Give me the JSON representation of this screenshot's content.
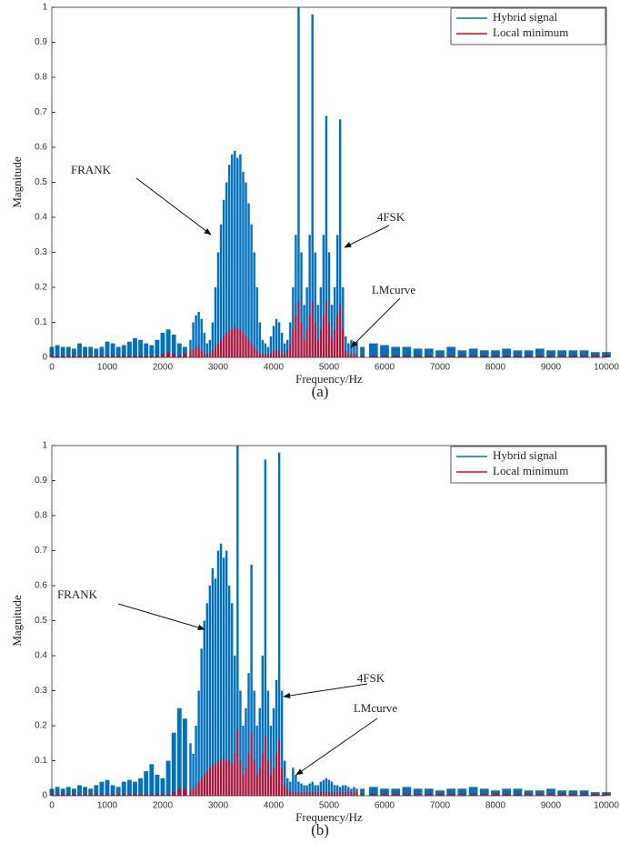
{
  "chart_data": [
    {
      "type": "stem",
      "caption": "(a)",
      "x_label": "Frequency/Hz",
      "y_label": "Magnitude",
      "legend": "upper right",
      "annotations": [
        "FRANK",
        "4FSK",
        "LMcurve"
      ],
      "xlim": [
        0,
        10000
      ],
      "ylim": [
        0,
        1
      ],
      "xticks": [
        0,
        1000,
        2000,
        3000,
        4000,
        5000,
        6000,
        7000,
        8000,
        9000,
        10000
      ],
      "yticks": [
        0,
        0.1,
        0.2,
        0.3,
        0.4,
        0.5,
        0.6,
        0.7,
        0.8,
        0.9,
        1
      ],
      "x": [
        0,
        100,
        200,
        300,
        400,
        500,
        600,
        700,
        800,
        900,
        1000,
        1100,
        1200,
        1300,
        1400,
        1500,
        1600,
        1700,
        1800,
        1900,
        2000,
        2100,
        2200,
        2300,
        2400,
        2500,
        2550,
        2600,
        2650,
        2700,
        2750,
        2800,
        2850,
        2900,
        2950,
        3000,
        3050,
        3100,
        3150,
        3200,
        3250,
        3300,
        3350,
        3400,
        3450,
        3500,
        3550,
        3600,
        3650,
        3700,
        3750,
        3800,
        3850,
        3900,
        3950,
        4000,
        4050,
        4100,
        4150,
        4200,
        4250,
        4300,
        4350,
        4400,
        4450,
        4500,
        4550,
        4600,
        4650,
        4700,
        4750,
        4800,
        4850,
        4900,
        4950,
        5000,
        5050,
        5100,
        5150,
        5200,
        5250,
        5300,
        5350,
        5400,
        5450,
        5500,
        5600,
        5800,
        6000,
        6200,
        6400,
        6600,
        6800,
        7000,
        7200,
        7400,
        7600,
        7800,
        8000,
        8200,
        8400,
        8600,
        8800,
        9000,
        9200,
        9400,
        9600,
        9800,
        10000
      ],
      "series": [
        {
          "name": "Hybrid signal",
          "color": "#0072bd",
          "values": [
            0.03,
            0.035,
            0.03,
            0.03,
            0.025,
            0.04,
            0.03,
            0.03,
            0.025,
            0.03,
            0.045,
            0.04,
            0.03,
            0.035,
            0.045,
            0.055,
            0.05,
            0.04,
            0.035,
            0.05,
            0.07,
            0.08,
            0.065,
            0.04,
            0.03,
            0.05,
            0.1,
            0.12,
            0.13,
            0.11,
            0.07,
            0.04,
            0.05,
            0.1,
            0.2,
            0.3,
            0.38,
            0.45,
            0.5,
            0.55,
            0.58,
            0.59,
            0.57,
            0.58,
            0.53,
            0.5,
            0.44,
            0.38,
            0.3,
            0.2,
            0.1,
            0.05,
            0.04,
            0.03,
            0.06,
            0.09,
            0.11,
            0.1,
            0.07,
            0.04,
            0.05,
            0.1,
            0.2,
            0.35,
            1.0,
            0.3,
            0.15,
            0.2,
            0.35,
            0.98,
            0.3,
            0.15,
            0.2,
            0.35,
            0.69,
            0.3,
            0.15,
            0.2,
            0.35,
            0.68,
            0.2,
            0.06,
            0.04,
            0.05,
            0.04,
            0.045,
            0.03,
            0.04,
            0.035,
            0.03,
            0.03,
            0.025,
            0.025,
            0.02,
            0.03,
            0.02,
            0.025,
            0.02,
            0.02,
            0.025,
            0.02,
            0.02,
            0.025,
            0.02,
            0.02,
            0.02,
            0.02,
            0.015,
            0.015
          ]
        },
        {
          "name": "Local minimum",
          "color": "#e3001b",
          "values": [
            0.005,
            0.005,
            0.005,
            0.005,
            0.005,
            0.005,
            0.005,
            0.005,
            0.005,
            0.005,
            0.005,
            0.005,
            0.005,
            0.005,
            0.005,
            0.005,
            0.005,
            0.005,
            0.005,
            0.005,
            0.01,
            0.015,
            0.01,
            0.005,
            0.01,
            0.02,
            0.02,
            0.03,
            0.03,
            0.02,
            0.01,
            0.01,
            0.01,
            0.02,
            0.03,
            0.04,
            0.05,
            0.06,
            0.07,
            0.08,
            0.08,
            0.09,
            0.08,
            0.08,
            0.07,
            0.06,
            0.05,
            0.04,
            0.03,
            0.02,
            0.01,
            0.01,
            0.01,
            0.01,
            0.01,
            0.02,
            0.02,
            0.02,
            0.01,
            0.01,
            0.02,
            0.04,
            0.08,
            0.12,
            0.16,
            0.1,
            0.05,
            0.08,
            0.12,
            0.16,
            0.1,
            0.05,
            0.08,
            0.12,
            0.16,
            0.1,
            0.05,
            0.08,
            0.12,
            0.15,
            0.08,
            0.02,
            0.01,
            0.01,
            0.01,
            0.01,
            0.005,
            0.005,
            0.005,
            0.005,
            0.005,
            0.005,
            0.005,
            0.005,
            0.005,
            0.005,
            0.005,
            0.005,
            0.005,
            0.005,
            0.005,
            0.005,
            0.005,
            0.005,
            0.005,
            0.005,
            0.005,
            0.005,
            0.005
          ]
        }
      ]
    },
    {
      "type": "stem",
      "caption": "(b)",
      "x_label": "Frequency/Hz",
      "y_label": "Magnitude",
      "legend": "upper right",
      "annotations": [
        "FRANK",
        "4FSK",
        "LMcurve"
      ],
      "xlim": [
        0,
        10000
      ],
      "ylim": [
        0,
        1
      ],
      "xticks": [
        0,
        1000,
        2000,
        3000,
        4000,
        5000,
        6000,
        7000,
        8000,
        9000,
        10000
      ],
      "yticks": [
        0,
        0.1,
        0.2,
        0.3,
        0.4,
        0.5,
        0.6,
        0.7,
        0.8,
        0.9,
        1
      ],
      "x": [
        0,
        100,
        200,
        300,
        400,
        500,
        600,
        700,
        800,
        900,
        1000,
        1100,
        1200,
        1300,
        1400,
        1500,
        1600,
        1700,
        1800,
        1900,
        2000,
        2100,
        2200,
        2300,
        2400,
        2500,
        2550,
        2600,
        2650,
        2700,
        2750,
        2800,
        2850,
        2900,
        2950,
        3000,
        3050,
        3100,
        3150,
        3200,
        3250,
        3300,
        3350,
        3400,
        3450,
        3500,
        3550,
        3600,
        3650,
        3700,
        3750,
        3800,
        3850,
        3900,
        3950,
        4000,
        4050,
        4100,
        4150,
        4200,
        4250,
        4300,
        4350,
        4400,
        4450,
        4500,
        4550,
        4600,
        4650,
        4700,
        4750,
        4800,
        4850,
        4900,
        4950,
        5000,
        5050,
        5100,
        5150,
        5200,
        5250,
        5300,
        5350,
        5400,
        5450,
        5500,
        5600,
        5800,
        6000,
        6200,
        6400,
        6600,
        6800,
        7000,
        7200,
        7400,
        7600,
        7800,
        8000,
        8200,
        8400,
        8600,
        8800,
        9000,
        9200,
        9400,
        9600,
        9800,
        10000
      ],
      "series": [
        {
          "name": "Hybrid signal",
          "color": "#0072bd",
          "values": [
            0.02,
            0.025,
            0.02,
            0.025,
            0.02,
            0.03,
            0.025,
            0.02,
            0.03,
            0.04,
            0.045,
            0.03,
            0.025,
            0.04,
            0.045,
            0.04,
            0.05,
            0.07,
            0.09,
            0.06,
            0.05,
            0.1,
            0.18,
            0.25,
            0.22,
            0.15,
            0.12,
            0.2,
            0.3,
            0.42,
            0.5,
            0.55,
            0.6,
            0.65,
            0.62,
            0.7,
            0.72,
            0.68,
            0.7,
            0.6,
            0.55,
            0.4,
            1.0,
            0.3,
            0.2,
            0.25,
            0.35,
            0.66,
            0.3,
            0.2,
            0.25,
            0.4,
            0.96,
            0.3,
            0.2,
            0.25,
            0.33,
            0.98,
            0.3,
            0.1,
            0.05,
            0.04,
            0.08,
            0.06,
            0.04,
            0.035,
            0.03,
            0.03,
            0.035,
            0.04,
            0.03,
            0.03,
            0.04,
            0.045,
            0.05,
            0.045,
            0.04,
            0.03,
            0.03,
            0.025,
            0.03,
            0.03,
            0.025,
            0.02,
            0.025,
            0.02,
            0.02,
            0.025,
            0.02,
            0.02,
            0.025,
            0.02,
            0.02,
            0.015,
            0.02,
            0.02,
            0.025,
            0.02,
            0.015,
            0.02,
            0.02,
            0.015,
            0.015,
            0.02,
            0.015,
            0.015,
            0.015,
            0.01,
            0.01
          ]
        },
        {
          "name": "Local minimum",
          "color": "#e3001b",
          "values": [
            0.005,
            0.005,
            0.005,
            0.005,
            0.005,
            0.005,
            0.005,
            0.005,
            0.005,
            0.005,
            0.005,
            0.005,
            0.005,
            0.005,
            0.005,
            0.005,
            0.005,
            0.005,
            0.005,
            0.005,
            0.005,
            0.005,
            0.01,
            0.02,
            0.02,
            0.015,
            0.02,
            0.03,
            0.04,
            0.05,
            0.06,
            0.07,
            0.08,
            0.09,
            0.09,
            0.1,
            0.1,
            0.11,
            0.1,
            0.1,
            0.09,
            0.12,
            0.19,
            0.1,
            0.06,
            0.08,
            0.12,
            0.18,
            0.1,
            0.06,
            0.08,
            0.12,
            0.17,
            0.1,
            0.06,
            0.08,
            0.12,
            0.16,
            0.08,
            0.03,
            0.02,
            0.01,
            0.01,
            0.01,
            0.01,
            0.01,
            0.01,
            0.01,
            0.01,
            0.01,
            0.01,
            0.01,
            0.01,
            0.01,
            0.01,
            0.01,
            0.01,
            0.01,
            0.01,
            0.01,
            0.01,
            0.01,
            0.01,
            0.01,
            0.01,
            0.01,
            0.005,
            0.005,
            0.005,
            0.005,
            0.005,
            0.005,
            0.005,
            0.005,
            0.005,
            0.005,
            0.005,
            0.005,
            0.005,
            0.005,
            0.005,
            0.005,
            0.005,
            0.005,
            0.005,
            0.005,
            0.005,
            0.005,
            0.005
          ]
        }
      ]
    }
  ]
}
